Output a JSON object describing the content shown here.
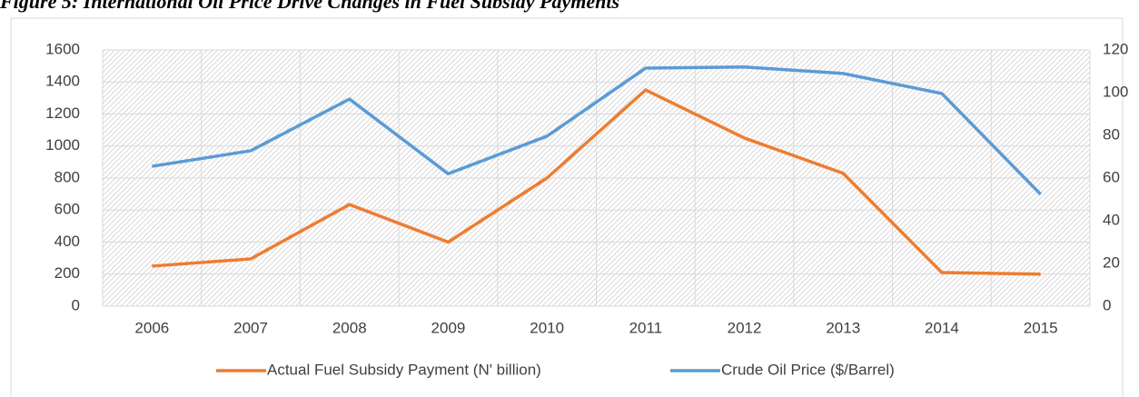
{
  "chart_data": {
    "type": "line",
    "title": "Figure 5: International Oil Price Drive Changes in Fuel Subsidy Payments",
    "categories": [
      "2006",
      "2007",
      "2008",
      "2009",
      "2010",
      "2011",
      "2012",
      "2013",
      "2014",
      "2015"
    ],
    "series": [
      {
        "name": "Actual Fuel Subsidy Payment (N' billion)",
        "color": "#ed7d31",
        "values": [
          250,
          295,
          635,
          400,
          800,
          1350,
          1050,
          830,
          210,
          200
        ]
      },
      {
        "name": "Crude Oil Price ($/Barrel)",
        "color": "#5b9bd5",
        "axis": "y2",
        "values": [
          65.5,
          72.8,
          97,
          62,
          79.6,
          111.5,
          112,
          109,
          99.6,
          52.4
        ]
      }
    ],
    "ylim": [
      0,
      1600
    ],
    "yticks": [
      0,
      200,
      400,
      600,
      800,
      1000,
      1200,
      1400,
      1600
    ],
    "y2lim": [
      0,
      120
    ],
    "y2ticks": [
      0,
      20,
      40,
      60,
      80,
      100,
      120
    ],
    "grid": true,
    "legend": "bottom"
  }
}
